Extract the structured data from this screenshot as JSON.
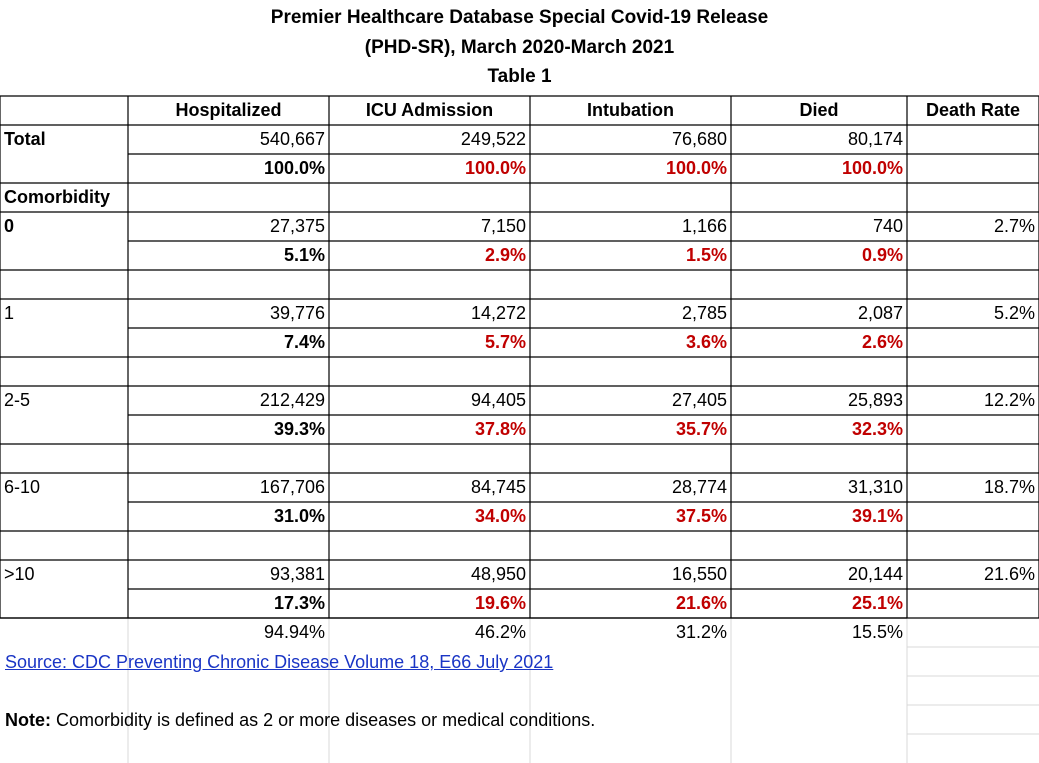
{
  "title": {
    "line1": "Premier Healthcare Database Special Covid-19 Release",
    "line2": "(PHD-SR), March 2020-March 2021",
    "line3": "Table 1"
  },
  "headers": [
    "Hospitalized",
    "ICU Admission",
    "Intubation",
    "Died",
    "Death Rate"
  ],
  "total": {
    "label": "Total",
    "counts": [
      "540,667",
      "249,522",
      "76,680",
      "80,174"
    ],
    "percents": [
      "100.0%",
      "100.0%",
      "100.0%",
      "100.0%"
    ]
  },
  "comorbidity_label": "Comorbidity",
  "groups": [
    {
      "label": "0",
      "counts": [
        "27,375",
        "7,150",
        "1,166",
        "740"
      ],
      "rate": "2.7%",
      "percents": [
        "5.1%",
        "2.9%",
        "1.5%",
        "0.9%"
      ]
    },
    {
      "label": "1",
      "counts": [
        "39,776",
        "14,272",
        "2,785",
        "2,087"
      ],
      "rate": "5.2%",
      "percents": [
        "7.4%",
        "5.7%",
        "3.6%",
        "2.6%"
      ]
    },
    {
      "label": "2-5",
      "counts": [
        "212,429",
        "94,405",
        "27,405",
        "25,893"
      ],
      "rate": "12.2%",
      "percents": [
        "39.3%",
        "37.8%",
        "35.7%",
        "32.3%"
      ]
    },
    {
      "label": "6-10",
      "counts": [
        "167,706",
        "84,745",
        "28,774",
        "31,310"
      ],
      "rate": "18.7%",
      "percents": [
        "31.0%",
        "34.0%",
        "37.5%",
        "39.1%"
      ]
    },
    {
      "label": ">10",
      "counts": [
        "93,381",
        "48,950",
        "16,550",
        "20,144"
      ],
      "rate": "21.6%",
      "percents": [
        "17.3%",
        "19.6%",
        "21.6%",
        "25.1%"
      ]
    }
  ],
  "summary_row": [
    "94.94%",
    "46.2%",
    "31.2%",
    "15.5%"
  ],
  "source_link": "Source: CDC Preventing Chronic Disease Volume 18, E66 July 2021",
  "note": {
    "label": "Note:",
    "text": " Comorbidity is defined as 2 or more diseases or medical conditions."
  },
  "colors": {
    "percent_red": "#c00000",
    "link_blue": "#1a35c5",
    "border": "#000000",
    "faint_grid": "#d9d9d9"
  }
}
